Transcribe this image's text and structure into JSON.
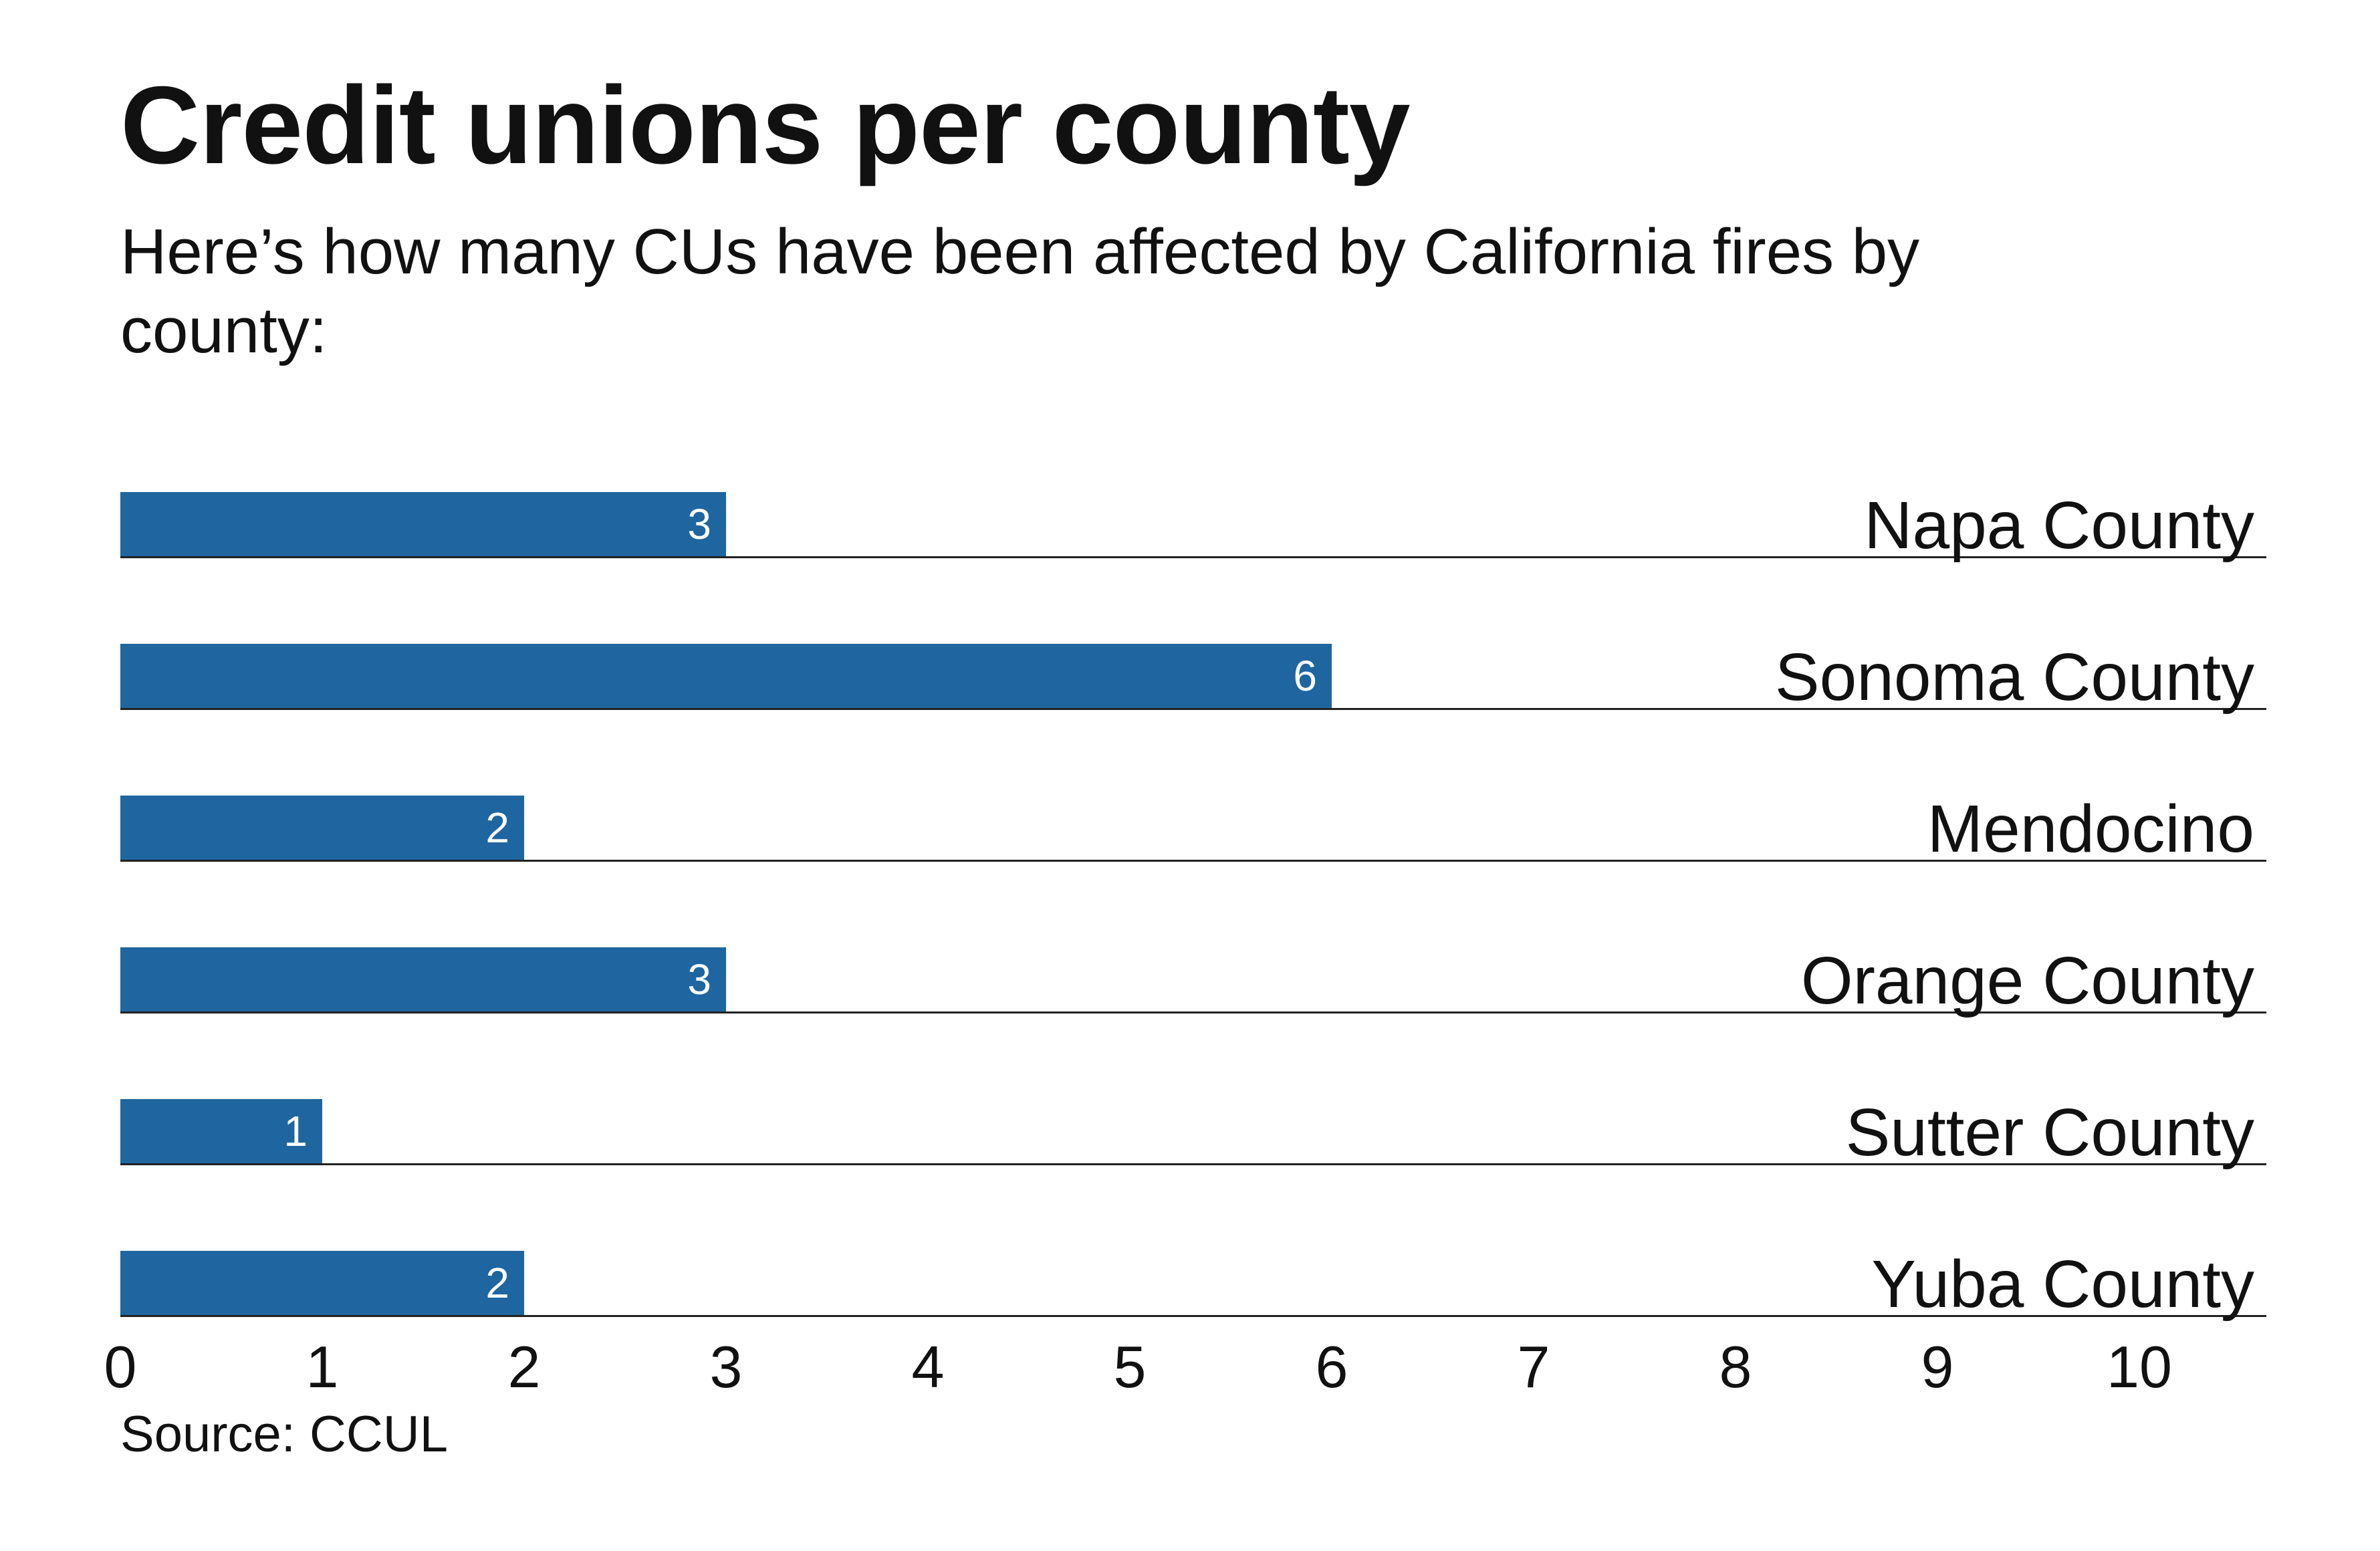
{
  "title": "Credit unions per county",
  "subtitle": "Here’s how many CUs have been affected by California fires by county:",
  "source": "Source: CCUL",
  "chart_data": {
    "type": "bar",
    "orientation": "horizontal",
    "title": "Credit unions per county",
    "categories": [
      "Napa County",
      "Sonoma County",
      "Mendocino",
      "Orange County",
      "Sutter County",
      "Yuba County"
    ],
    "values": [
      3,
      6,
      2,
      3,
      1,
      2
    ],
    "data_labels": [
      "3",
      "6",
      "2",
      "3",
      "1",
      "2"
    ],
    "xlim": [
      0,
      10
    ],
    "xticks": [
      0,
      1,
      2,
      3,
      4,
      5,
      6,
      7,
      8,
      9,
      10
    ],
    "xlabel": "",
    "ylabel": "",
    "grid": false,
    "legend": "none",
    "bar_color": "#1f66a0",
    "label_color": "#ffffff",
    "separator_color": "#222222"
  }
}
